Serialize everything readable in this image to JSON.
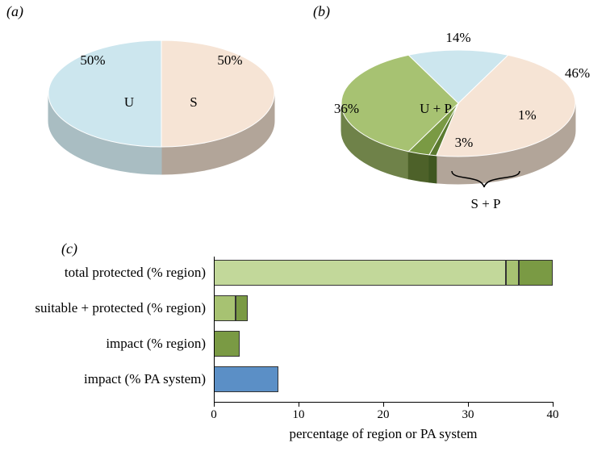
{
  "panels": {
    "a": {
      "label": "(a)"
    },
    "b": {
      "label": "(b)"
    },
    "c": {
      "label": "(c)"
    }
  },
  "pieA": {
    "slices": [
      {
        "label": "50%",
        "inner": "U",
        "value": 50,
        "color": "#cce6ee",
        "side_color": "#a9bdc2"
      },
      {
        "label": "50%",
        "inner": "S",
        "value": 50,
        "color": "#f6e4d5",
        "side_color": "#b2a599"
      }
    ]
  },
  "pieB": {
    "slices": [
      {
        "label": "14%",
        "value": 14,
        "color": "#cce6ee",
        "side_color": "#a9bdc2"
      },
      {
        "label": "46%",
        "value": 46,
        "color": "#f6e4d5",
        "side_color": "#b2a599"
      },
      {
        "label": "1%",
        "value": 1,
        "color": "#5a7a2f",
        "side_color": "#3f5720"
      },
      {
        "label": "3%",
        "value": 3,
        "color": "#7a9a44",
        "side_color": "#4d6129"
      },
      {
        "label": "36%",
        "value": 36,
        "color": "#a7c272",
        "side_color": "#6f8249",
        "inner": "U + P"
      }
    ],
    "brace_label": "S + P"
  },
  "barChart": {
    "x_title": "percentage of region or PA system",
    "x_min": 0,
    "x_max": 40,
    "x_tick_step": 10,
    "rows": [
      {
        "label": "total protected (% region)",
        "segments": [
          {
            "from": 0,
            "to": 34.5,
            "color": "#c2d89a"
          },
          {
            "from": 34.5,
            "to": 36,
            "color": "#a7c272"
          },
          {
            "from": 36,
            "to": 40,
            "color": "#7a9a44"
          }
        ]
      },
      {
        "label": "suitable + protected (% region)",
        "segments": [
          {
            "from": 0,
            "to": 2.6,
            "color": "#a7c272"
          },
          {
            "from": 2.6,
            "to": 4.0,
            "color": "#7a9a44"
          }
        ]
      },
      {
        "label": "impact (% region)",
        "segments": [
          {
            "from": 0,
            "to": 3.0,
            "color": "#7a9a44"
          }
        ]
      },
      {
        "label": "impact (% PA system)",
        "segments": [
          {
            "from": 0,
            "to": 7.6,
            "color": "#5b8fc6"
          }
        ]
      }
    ]
  },
  "style": {
    "text_color": "#000000",
    "font_family": "Times New Roman",
    "label_fontsize": 17
  }
}
